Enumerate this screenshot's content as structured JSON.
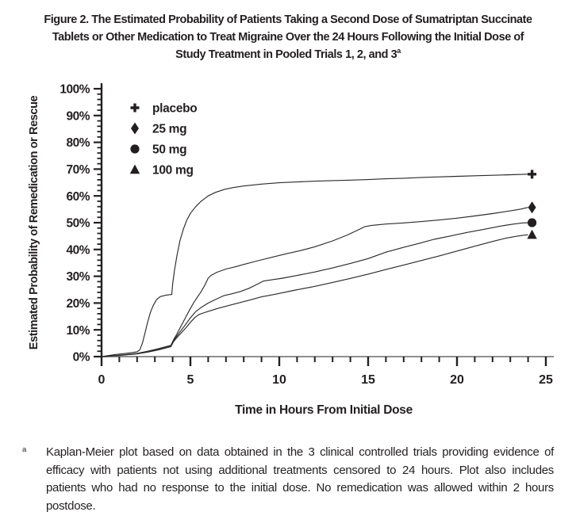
{
  "figure": {
    "title_line1": "Figure 2. The Estimated Probability of Patients Taking a Second Dose of Sumatriptan Succinate",
    "title_line2": "Tablets or Other Medication to Treat Migraine Over the 24 Hours Following the Initial Dose of",
    "title_line3": "Study Treatment in Pooled Trials 1, 2, and 3",
    "title_superscript": "a"
  },
  "chart_data": {
    "type": "line",
    "title": "",
    "xlabel": "Time in Hours From Initial Dose",
    "ylabel": "Estimated Probability of Remedication or Rescue",
    "xlim": [
      0,
      25
    ],
    "ylim": [
      0,
      100
    ],
    "x_major_step": 5,
    "x_minor_step": 1,
    "y_major_step": 10,
    "y_minor_step": 2,
    "x_ticklabels": [
      "0",
      "5",
      "10",
      "15",
      "20",
      "25"
    ],
    "y_ticklabels": [
      "0%",
      "10%",
      "20%",
      "30%",
      "40%",
      "50%",
      "60%",
      "70%",
      "80%",
      "90%",
      "100%"
    ],
    "grid": false,
    "legend_position": "upper-left-inside",
    "line_color": "#2b2b2b",
    "axis_color": "#231f20",
    "baseline_color": "#8f8f8f",
    "legend": [
      {
        "marker": "plus",
        "label": "placebo"
      },
      {
        "marker": "diamond",
        "label": "25 mg"
      },
      {
        "marker": "circle",
        "label": "50 mg"
      },
      {
        "marker": "triangle",
        "label": "100 mg"
      }
    ],
    "series": [
      {
        "name": "placebo",
        "marker": "plus",
        "end_value_pct": 68,
        "points": [
          [
            0,
            0
          ],
          [
            0.8,
            0.8
          ],
          [
            1.5,
            1.3
          ],
          [
            2,
            1.8
          ],
          [
            2.15,
            2.5
          ],
          [
            2.3,
            5
          ],
          [
            2.45,
            9
          ],
          [
            2.6,
            13
          ],
          [
            2.75,
            16.5
          ],
          [
            2.9,
            19
          ],
          [
            3.1,
            21.3
          ],
          [
            3.3,
            22.4
          ],
          [
            3.6,
            22.9
          ],
          [
            3.95,
            23.2
          ],
          [
            4.0,
            27
          ],
          [
            4.1,
            32
          ],
          [
            4.25,
            38
          ],
          [
            4.4,
            43
          ],
          [
            4.6,
            47.5
          ],
          [
            4.8,
            51
          ],
          [
            5.0,
            53.5
          ],
          [
            5.3,
            56
          ],
          [
            5.6,
            58
          ],
          [
            6.0,
            60
          ],
          [
            6.4,
            61.3
          ],
          [
            6.9,
            62.4
          ],
          [
            7.4,
            63.1
          ],
          [
            8.0,
            63.7
          ],
          [
            9.0,
            64.4
          ],
          [
            10,
            64.9
          ],
          [
            11,
            65.2
          ],
          [
            12,
            65.5
          ],
          [
            13,
            65.7
          ],
          [
            14,
            65.9
          ],
          [
            15,
            66.1
          ],
          [
            16,
            66.4
          ],
          [
            17,
            66.6
          ],
          [
            18,
            66.9
          ],
          [
            19,
            67.1
          ],
          [
            20,
            67.3
          ],
          [
            21,
            67.5
          ],
          [
            22,
            67.7
          ],
          [
            23,
            67.9
          ],
          [
            24,
            68.1
          ]
        ]
      },
      {
        "name": "25 mg",
        "marker": "diamond",
        "end_value_pct": 56,
        "points": [
          [
            0,
            0
          ],
          [
            1,
            0.5
          ],
          [
            2,
            1.2
          ],
          [
            2.6,
            2
          ],
          [
            3.2,
            3
          ],
          [
            3.9,
            4.2
          ],
          [
            4.05,
            6.3
          ],
          [
            4.2,
            8
          ],
          [
            4.4,
            10.5
          ],
          [
            4.6,
            13
          ],
          [
            4.8,
            15.5
          ],
          [
            5.0,
            18
          ],
          [
            5.2,
            20.3
          ],
          [
            5.4,
            22.3
          ],
          [
            5.6,
            24.2
          ],
          [
            5.8,
            26.5
          ],
          [
            6.0,
            29.3
          ],
          [
            6.15,
            30.3
          ],
          [
            6.5,
            31.5
          ],
          [
            7.0,
            32.7
          ],
          [
            7.5,
            33.5
          ],
          [
            8.0,
            34.4
          ],
          [
            8.8,
            35.8
          ],
          [
            9.6,
            37.1
          ],
          [
            10.4,
            38.4
          ],
          [
            11.2,
            39.6
          ],
          [
            12,
            41
          ],
          [
            13,
            43.2
          ],
          [
            13.8,
            45.3
          ],
          [
            14.4,
            47.2
          ],
          [
            14.8,
            48.5
          ],
          [
            15.2,
            49
          ],
          [
            16,
            49.5
          ],
          [
            17,
            49.9
          ],
          [
            18,
            50.4
          ],
          [
            19,
            51
          ],
          [
            20,
            51.7
          ],
          [
            21,
            52.5
          ],
          [
            22,
            53.4
          ],
          [
            23,
            54.4
          ],
          [
            23.6,
            55.1
          ],
          [
            24,
            55.7
          ]
        ]
      },
      {
        "name": "50 mg",
        "marker": "circle",
        "end_value_pct": 50,
        "points": [
          [
            0,
            0
          ],
          [
            1,
            0.5
          ],
          [
            2,
            1.1
          ],
          [
            2.6,
            1.9
          ],
          [
            3.2,
            2.8
          ],
          [
            3.9,
            4.0
          ],
          [
            4.05,
            6.0
          ],
          [
            4.25,
            7.8
          ],
          [
            4.5,
            10
          ],
          [
            4.75,
            12.2
          ],
          [
            5.0,
            14.5
          ],
          [
            5.3,
            16.8
          ],
          [
            5.6,
            18.3
          ],
          [
            6.0,
            20
          ],
          [
            6.4,
            21.3
          ],
          [
            6.9,
            22.8
          ],
          [
            7.3,
            23.4
          ],
          [
            7.8,
            24.3
          ],
          [
            8.3,
            25.5
          ],
          [
            8.7,
            26.8
          ],
          [
            9.1,
            28.2
          ],
          [
            9.5,
            28.6
          ],
          [
            10.2,
            29.3
          ],
          [
            11,
            30.3
          ],
          [
            12,
            31.6
          ],
          [
            13,
            33.1
          ],
          [
            14,
            34.8
          ],
          [
            15,
            36.6
          ],
          [
            16,
            39
          ],
          [
            17,
            40.8
          ],
          [
            18,
            42.5
          ],
          [
            18.7,
            43.8
          ],
          [
            19.6,
            45
          ],
          [
            20.6,
            46.4
          ],
          [
            21.6,
            47.6
          ],
          [
            22.5,
            48.8
          ],
          [
            23.2,
            49.5
          ],
          [
            23.7,
            49.9
          ],
          [
            24,
            50
          ]
        ]
      },
      {
        "name": "100 mg",
        "marker": "triangle",
        "end_value_pct": 45.5,
        "points": [
          [
            0,
            0
          ],
          [
            1,
            0.4
          ],
          [
            2,
            1.0
          ],
          [
            2.6,
            1.7
          ],
          [
            3.2,
            2.5
          ],
          [
            3.9,
            3.7
          ],
          [
            4.05,
            5.6
          ],
          [
            4.25,
            7.2
          ],
          [
            4.5,
            9
          ],
          [
            4.75,
            10.8
          ],
          [
            5.0,
            12.8
          ],
          [
            5.25,
            14.6
          ],
          [
            5.45,
            15.6
          ],
          [
            5.6,
            16
          ],
          [
            6.0,
            16.9
          ],
          [
            6.6,
            18.1
          ],
          [
            7.4,
            19.5
          ],
          [
            8.2,
            20.9
          ],
          [
            9.0,
            22.3
          ],
          [
            9.8,
            23.3
          ],
          [
            10.8,
            24.7
          ],
          [
            11.9,
            26.1
          ],
          [
            13,
            27.7
          ],
          [
            14,
            29.2
          ],
          [
            15,
            30.8
          ],
          [
            16,
            32.5
          ],
          [
            17,
            34.2
          ],
          [
            18,
            35.9
          ],
          [
            19,
            37.6
          ],
          [
            20,
            39.4
          ],
          [
            21,
            41.2
          ],
          [
            22,
            43
          ],
          [
            22.8,
            44.3
          ],
          [
            23.5,
            45.1
          ],
          [
            24,
            45.5
          ]
        ]
      }
    ]
  },
  "footnote": {
    "superscript": "a",
    "lines": [
      "Kaplan-Meier plot based on data obtained in the 3 clinical controlled trials providing evidence of",
      "efficacy with patients not using additional treatments censored to 24 hours. Plot also includes",
      "patients who had no response to the initial dose. No remedication was allowed within 2 hours",
      "postdose."
    ]
  }
}
